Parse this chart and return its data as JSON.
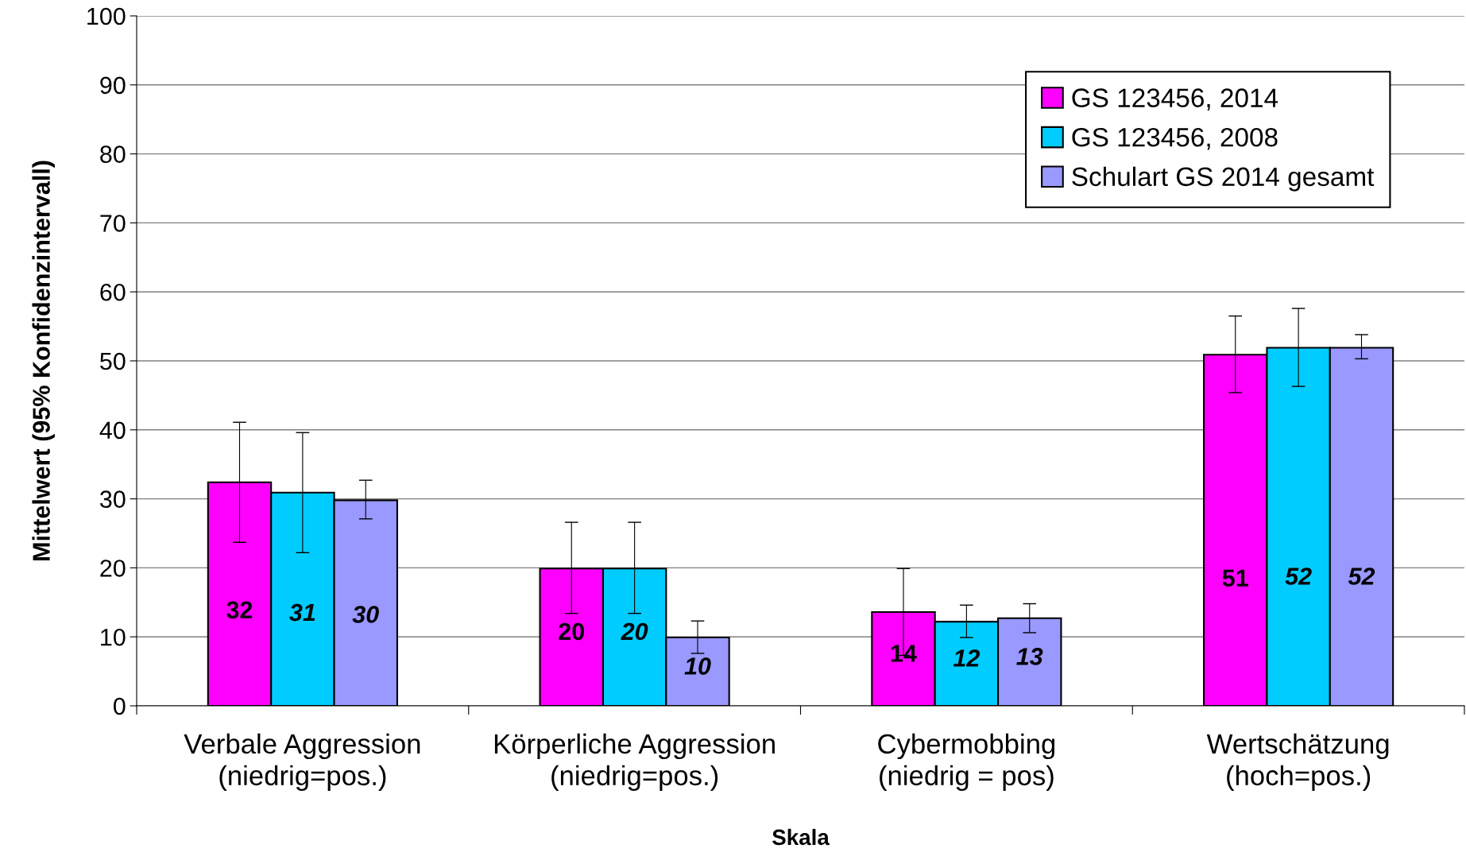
{
  "chart_data": {
    "type": "bar",
    "xlabel": "Skala",
    "ylabel": "Mittelwert (95% Konfidenzintervall)",
    "categories": [
      "Verbale Aggression\n(niedrig=pos.)",
      "Körperliche Aggression\n(niedrig=pos.)",
      "Cybermobbing\n(niedrig = pos)",
      "Wertschätzung\n(hoch=pos.)"
    ],
    "series": [
      {
        "name": "GS 123456, 2014",
        "color": "#ff00ff",
        "values": [
          32.4,
          19.9,
          13.6,
          50.9
        ],
        "errors": [
          [
            23.7,
            41.1
          ],
          [
            13.4,
            26.6
          ],
          [
            7.3,
            19.9
          ],
          [
            45.4,
            56.5
          ]
        ],
        "value_labels": [
          "32",
          "20",
          "14",
          "51"
        ]
      },
      {
        "name": "GS 123456, 2008",
        "color": "#00ccff",
        "values": [
          30.9,
          19.9,
          12.2,
          51.9
        ],
        "errors": [
          [
            22.2,
            39.6
          ],
          [
            13.4,
            26.6
          ],
          [
            9.9,
            14.6
          ],
          [
            46.3,
            57.6
          ]
        ],
        "value_labels": [
          "31",
          "20",
          "12",
          "52"
        ]
      },
      {
        "name": "Schulart GS 2014 gesamt",
        "color": "#9999ff",
        "values": [
          29.8,
          9.9,
          12.7,
          51.9
        ],
        "errors": [
          [
            27.1,
            32.7
          ],
          [
            7.6,
            12.3
          ],
          [
            10.6,
            14.8
          ],
          [
            50.3,
            53.8
          ]
        ],
        "value_labels": [
          "30",
          "10",
          "13",
          "52"
        ]
      }
    ],
    "ylim": [
      0,
      100
    ],
    "yticks": [
      0,
      10,
      20,
      30,
      40,
      50,
      60,
      70,
      80,
      90,
      100
    ],
    "grid": "y",
    "legend": "top right"
  }
}
